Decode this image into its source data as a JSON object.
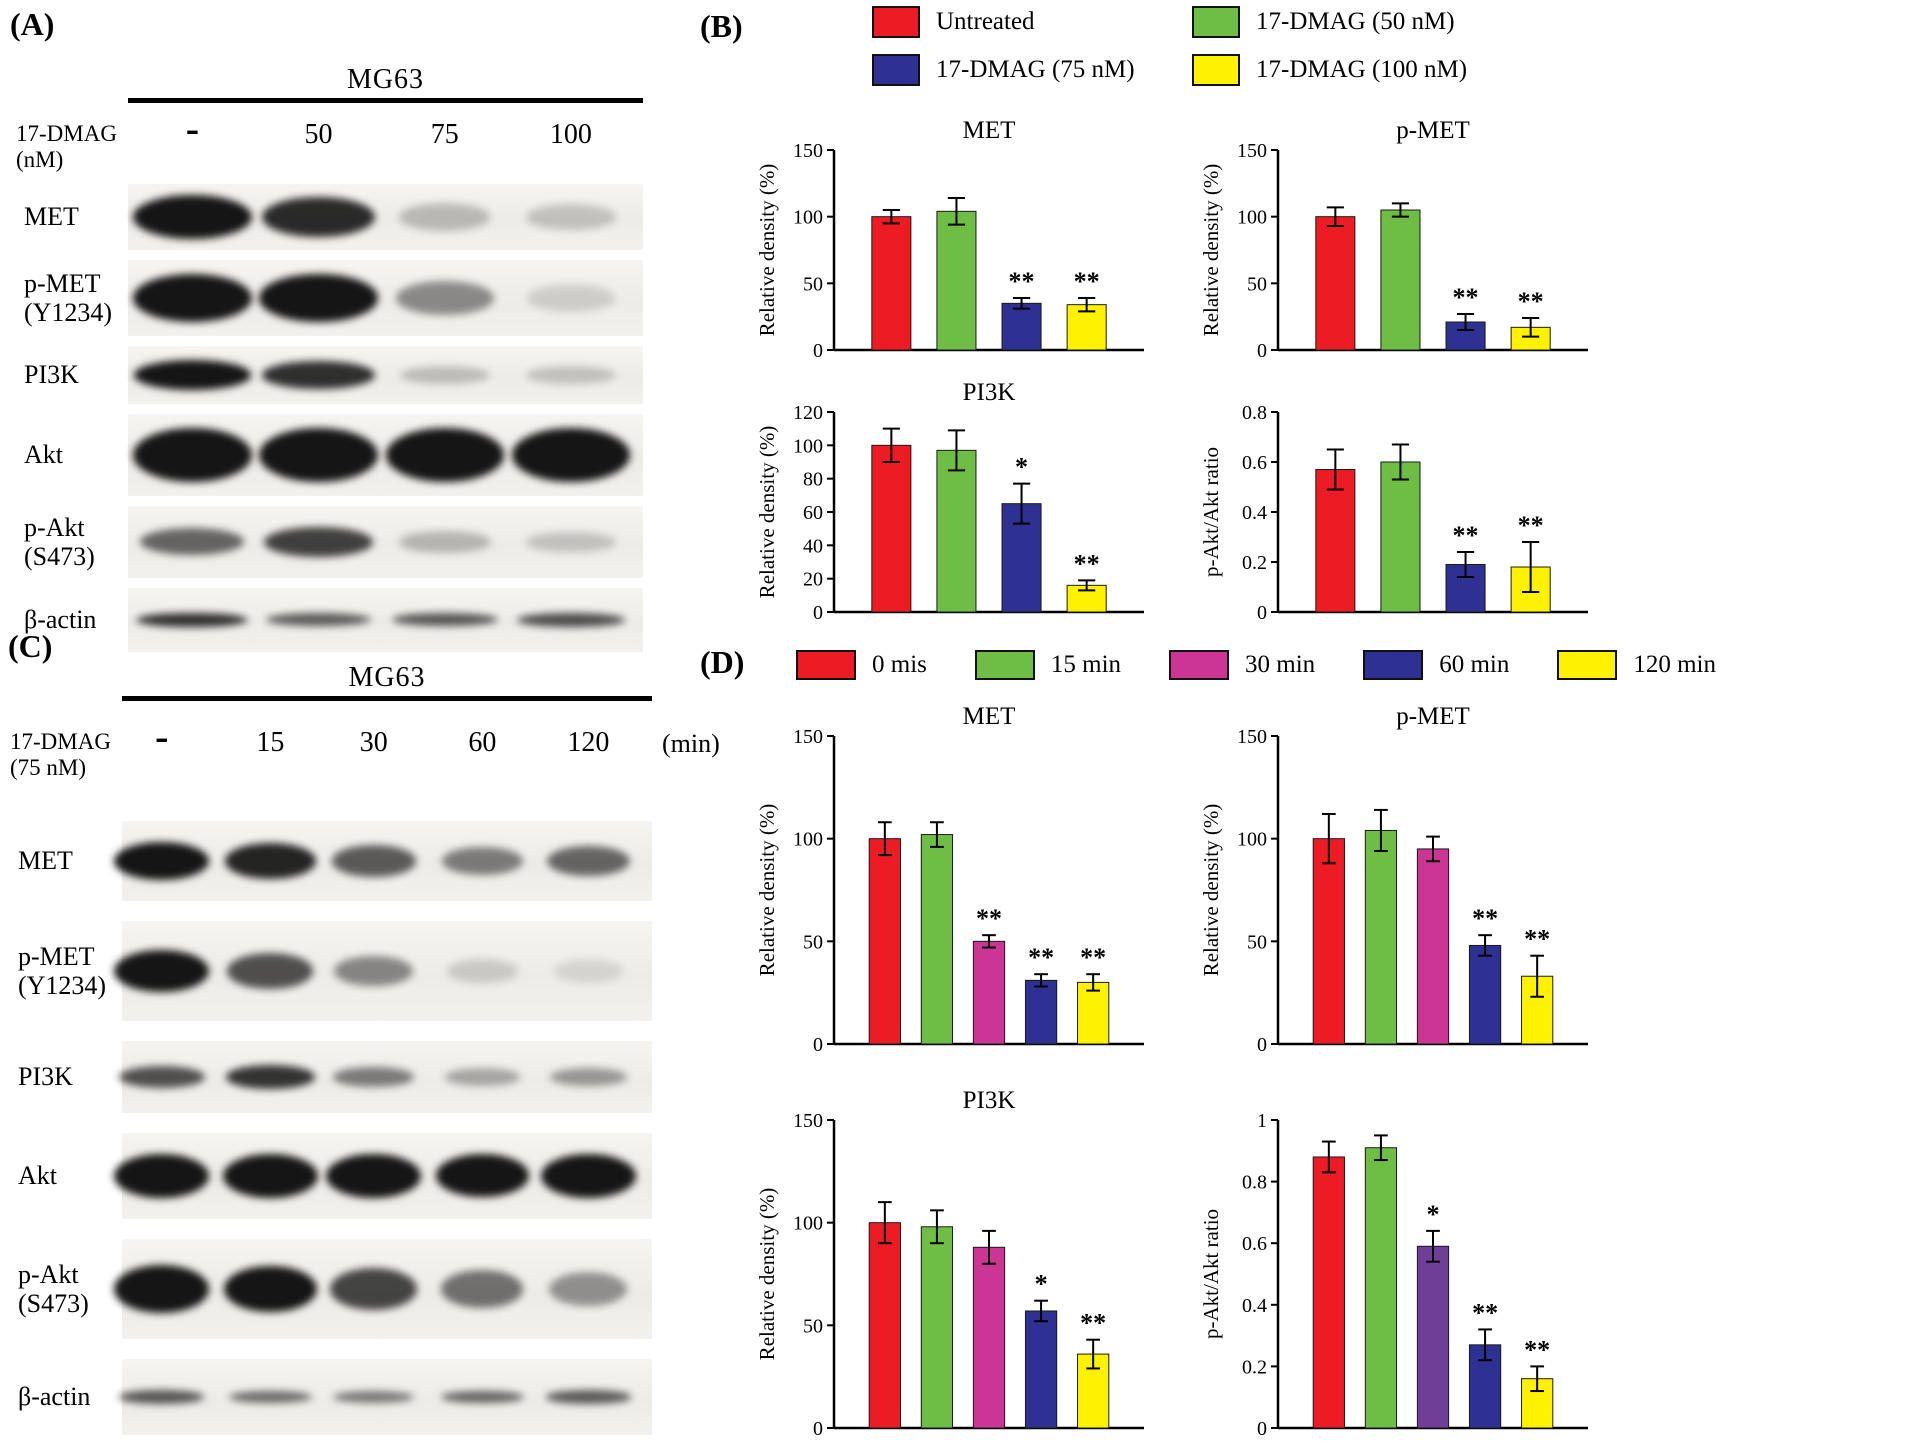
{
  "colors": {
    "red": "#ED1C24",
    "green": "#6EBE45",
    "blue": "#2E3192",
    "yellow": "#FFF200",
    "magenta": "#CB3694",
    "purple": "#6F3E97",
    "band": "#151515",
    "axis": "#000000"
  },
  "panel_a": {
    "label": "(A)",
    "cell_line": "MG63",
    "treatment_label": "17-DMAG\n(nM)",
    "lane_labels": [
      "-",
      "50",
      "75",
      "100"
    ],
    "lane_suffix": "",
    "rows": [
      {
        "label": "MET",
        "strip_h": 66,
        "band_h": 44,
        "bands": [
          1,
          0.82,
          0.16,
          0.12
        ]
      },
      {
        "label": "p-MET\n(Y1234)",
        "strip_h": 76,
        "band_h": 48,
        "bands": [
          1,
          0.98,
          0.38,
          0.06
        ]
      },
      {
        "label": "PI3K",
        "strip_h": 58,
        "band_h": 30,
        "bands": [
          0.95,
          0.8,
          0.14,
          0.12
        ]
      },
      {
        "label": "Akt",
        "strip_h": 82,
        "band_h": 54,
        "bands": [
          1,
          1,
          0.98,
          1
        ]
      },
      {
        "label": "p-Akt\n(S473)",
        "strip_h": 72,
        "band_h": 34,
        "bands": [
          0.55,
          0.72,
          0.18,
          0.12
        ]
      },
      {
        "label": "β-actin",
        "strip_h": 64,
        "band_h": 16,
        "bands": [
          0.8,
          0.6,
          0.62,
          0.66
        ]
      }
    ]
  },
  "panel_b": {
    "label": "(B)",
    "legend": [
      {
        "label": "Untreated",
        "color_key": "red"
      },
      {
        "label": "17-DMAG (50 nM)",
        "color_key": "green"
      },
      {
        "label": "17-DMAG (75 nM)",
        "color_key": "blue"
      },
      {
        "label": "17-DMAG (100 nM)",
        "color_key": "yellow"
      }
    ]
  },
  "panel_c": {
    "label": "(C)",
    "cell_line": "MG63",
    "treatment_label": "17-DMAG\n(75 nM)",
    "lane_labels": [
      "-",
      "15",
      "30",
      "60",
      "120"
    ],
    "lane_suffix": "(min)",
    "rows": [
      {
        "label": "MET",
        "strip_h": 80,
        "band_h": 38,
        "bands": [
          1,
          0.85,
          0.6,
          0.45,
          0.55
        ]
      },
      {
        "label": "p-MET\n(Y1234)",
        "strip_h": 100,
        "band_h": 42,
        "bands": [
          1,
          0.65,
          0.4,
          0.08,
          0.03
        ]
      },
      {
        "label": "PI3K",
        "strip_h": 72,
        "band_h": 26,
        "bands": [
          0.65,
          0.78,
          0.45,
          0.25,
          0.32
        ]
      },
      {
        "label": "Akt",
        "strip_h": 86,
        "band_h": 44,
        "bands": [
          1,
          1,
          1,
          0.95,
          1
        ]
      },
      {
        "label": "p-Akt\n(S473)",
        "strip_h": 100,
        "band_h": 48,
        "bands": [
          1,
          0.95,
          0.7,
          0.5,
          0.35
        ]
      },
      {
        "label": "β-actin",
        "strip_h": 76,
        "band_h": 16,
        "bands": [
          0.62,
          0.52,
          0.46,
          0.55,
          0.6
        ]
      }
    ]
  },
  "panel_d": {
    "label": "(D)",
    "legend": [
      {
        "label": "0 mis",
        "color_key": "red"
      },
      {
        "label": "15 min",
        "color_key": "green"
      },
      {
        "label": "30 min",
        "color_key": "magenta"
      },
      {
        "label": "60 min",
        "color_key": "blue"
      },
      {
        "label": "120 min",
        "color_key": "yellow"
      }
    ]
  },
  "chart_data": [
    {
      "panel": "B",
      "type": "bar",
      "title": "MET",
      "ylabel": "Relative density (%)",
      "ymax": 150,
      "yticks": [
        0,
        50,
        100,
        150
      ],
      "categories": [
        "Untreated",
        "17-DMAG (50 nM)",
        "17-DMAG (75 nM)",
        "17-DMAG (100 nM)"
      ],
      "color_keys": [
        "red",
        "green",
        "blue",
        "yellow"
      ],
      "values": [
        100,
        104,
        35,
        34
      ],
      "errors": [
        5,
        10,
        4,
        5
      ],
      "sig": [
        "",
        "",
        "**",
        "**"
      ]
    },
    {
      "panel": "B",
      "type": "bar",
      "title": "p-MET",
      "ylabel": "Relative density (%)",
      "ymax": 150,
      "yticks": [
        0,
        50,
        100,
        150
      ],
      "categories": [
        "Untreated",
        "17-DMAG (50 nM)",
        "17-DMAG (75 nM)",
        "17-DMAG (100 nM)"
      ],
      "color_keys": [
        "red",
        "green",
        "blue",
        "yellow"
      ],
      "values": [
        100,
        105,
        21,
        17
      ],
      "errors": [
        7,
        5,
        6,
        7
      ],
      "sig": [
        "",
        "",
        "**",
        "**"
      ]
    },
    {
      "panel": "B",
      "type": "bar",
      "title": "PI3K",
      "ylabel": "Relative density (%)",
      "ymax": 120,
      "yticks": [
        0,
        20,
        40,
        60,
        80,
        100,
        120
      ],
      "categories": [
        "Untreated",
        "17-DMAG (50 nM)",
        "17-DMAG (75 nM)",
        "17-DMAG (100 nM)"
      ],
      "color_keys": [
        "red",
        "green",
        "blue",
        "yellow"
      ],
      "values": [
        100,
        97,
        65,
        16
      ],
      "errors": [
        10,
        12,
        12,
        3
      ],
      "sig": [
        "",
        "",
        "*",
        "**"
      ]
    },
    {
      "panel": "B",
      "type": "bar",
      "title": "",
      "ylabel": "p-Akt/Akt ratio",
      "ymax": 0.8,
      "yticks": [
        0,
        0.2,
        0.4,
        0.6,
        0.8
      ],
      "categories": [
        "Untreated",
        "17-DMAG (50 nM)",
        "17-DMAG (75 nM)",
        "17-DMAG (100 nM)"
      ],
      "color_keys": [
        "red",
        "green",
        "blue",
        "yellow"
      ],
      "values": [
        0.57,
        0.6,
        0.19,
        0.18
      ],
      "errors": [
        0.08,
        0.07,
        0.05,
        0.1
      ],
      "sig": [
        "",
        "",
        "**",
        "**"
      ]
    },
    {
      "panel": "D",
      "type": "bar",
      "title": "MET",
      "ylabel": "Relative density (%)",
      "ymax": 150,
      "yticks": [
        0,
        50,
        100,
        150
      ],
      "categories": [
        "0 mis",
        "15 min",
        "30 min",
        "60 min",
        "120 min"
      ],
      "color_keys": [
        "red",
        "green",
        "magenta",
        "blue",
        "yellow"
      ],
      "values": [
        100,
        102,
        50,
        31,
        30
      ],
      "errors": [
        8,
        6,
        3,
        3,
        4
      ],
      "sig": [
        "",
        "",
        "**",
        "**",
        "**"
      ]
    },
    {
      "panel": "D",
      "type": "bar",
      "title": "p-MET",
      "ylabel": "Relative density (%)",
      "ymax": 150,
      "yticks": [
        0,
        50,
        100,
        150
      ],
      "categories": [
        "0 mis",
        "15 min",
        "30 min",
        "60 min",
        "120 min"
      ],
      "color_keys": [
        "red",
        "green",
        "magenta",
        "blue",
        "yellow"
      ],
      "values": [
        100,
        104,
        95,
        48,
        33
      ],
      "errors": [
        12,
        10,
        6,
        5,
        10
      ],
      "sig": [
        "",
        "",
        "",
        "**",
        "**"
      ]
    },
    {
      "panel": "D",
      "type": "bar",
      "title": "PI3K",
      "ylabel": "Relative density (%)",
      "ymax": 150,
      "yticks": [
        0,
        50,
        100,
        150
      ],
      "categories": [
        "0 mis",
        "15 min",
        "30 min",
        "60 min",
        "120 min"
      ],
      "color_keys": [
        "red",
        "green",
        "magenta",
        "blue",
        "yellow"
      ],
      "values": [
        100,
        98,
        88,
        57,
        36
      ],
      "errors": [
        10,
        8,
        8,
        5,
        7
      ],
      "sig": [
        "",
        "",
        "",
        "*",
        "**"
      ]
    },
    {
      "panel": "D",
      "type": "bar",
      "title": "",
      "ylabel": "p-Akt/Akt ratio",
      "ymax": 1,
      "yticks": [
        0,
        0.2,
        0.4,
        0.6,
        0.8,
        1
      ],
      "categories": [
        "0 mis",
        "15 min",
        "30 min",
        "60 min",
        "120 min"
      ],
      "color_keys": [
        "red",
        "green",
        "purple",
        "blue",
        "yellow"
      ],
      "values": [
        0.88,
        0.91,
        0.59,
        0.27,
        0.16
      ],
      "errors": [
        0.05,
        0.04,
        0.05,
        0.05,
        0.04
      ],
      "sig": [
        "",
        "",
        "*",
        "**",
        "**"
      ]
    }
  ]
}
